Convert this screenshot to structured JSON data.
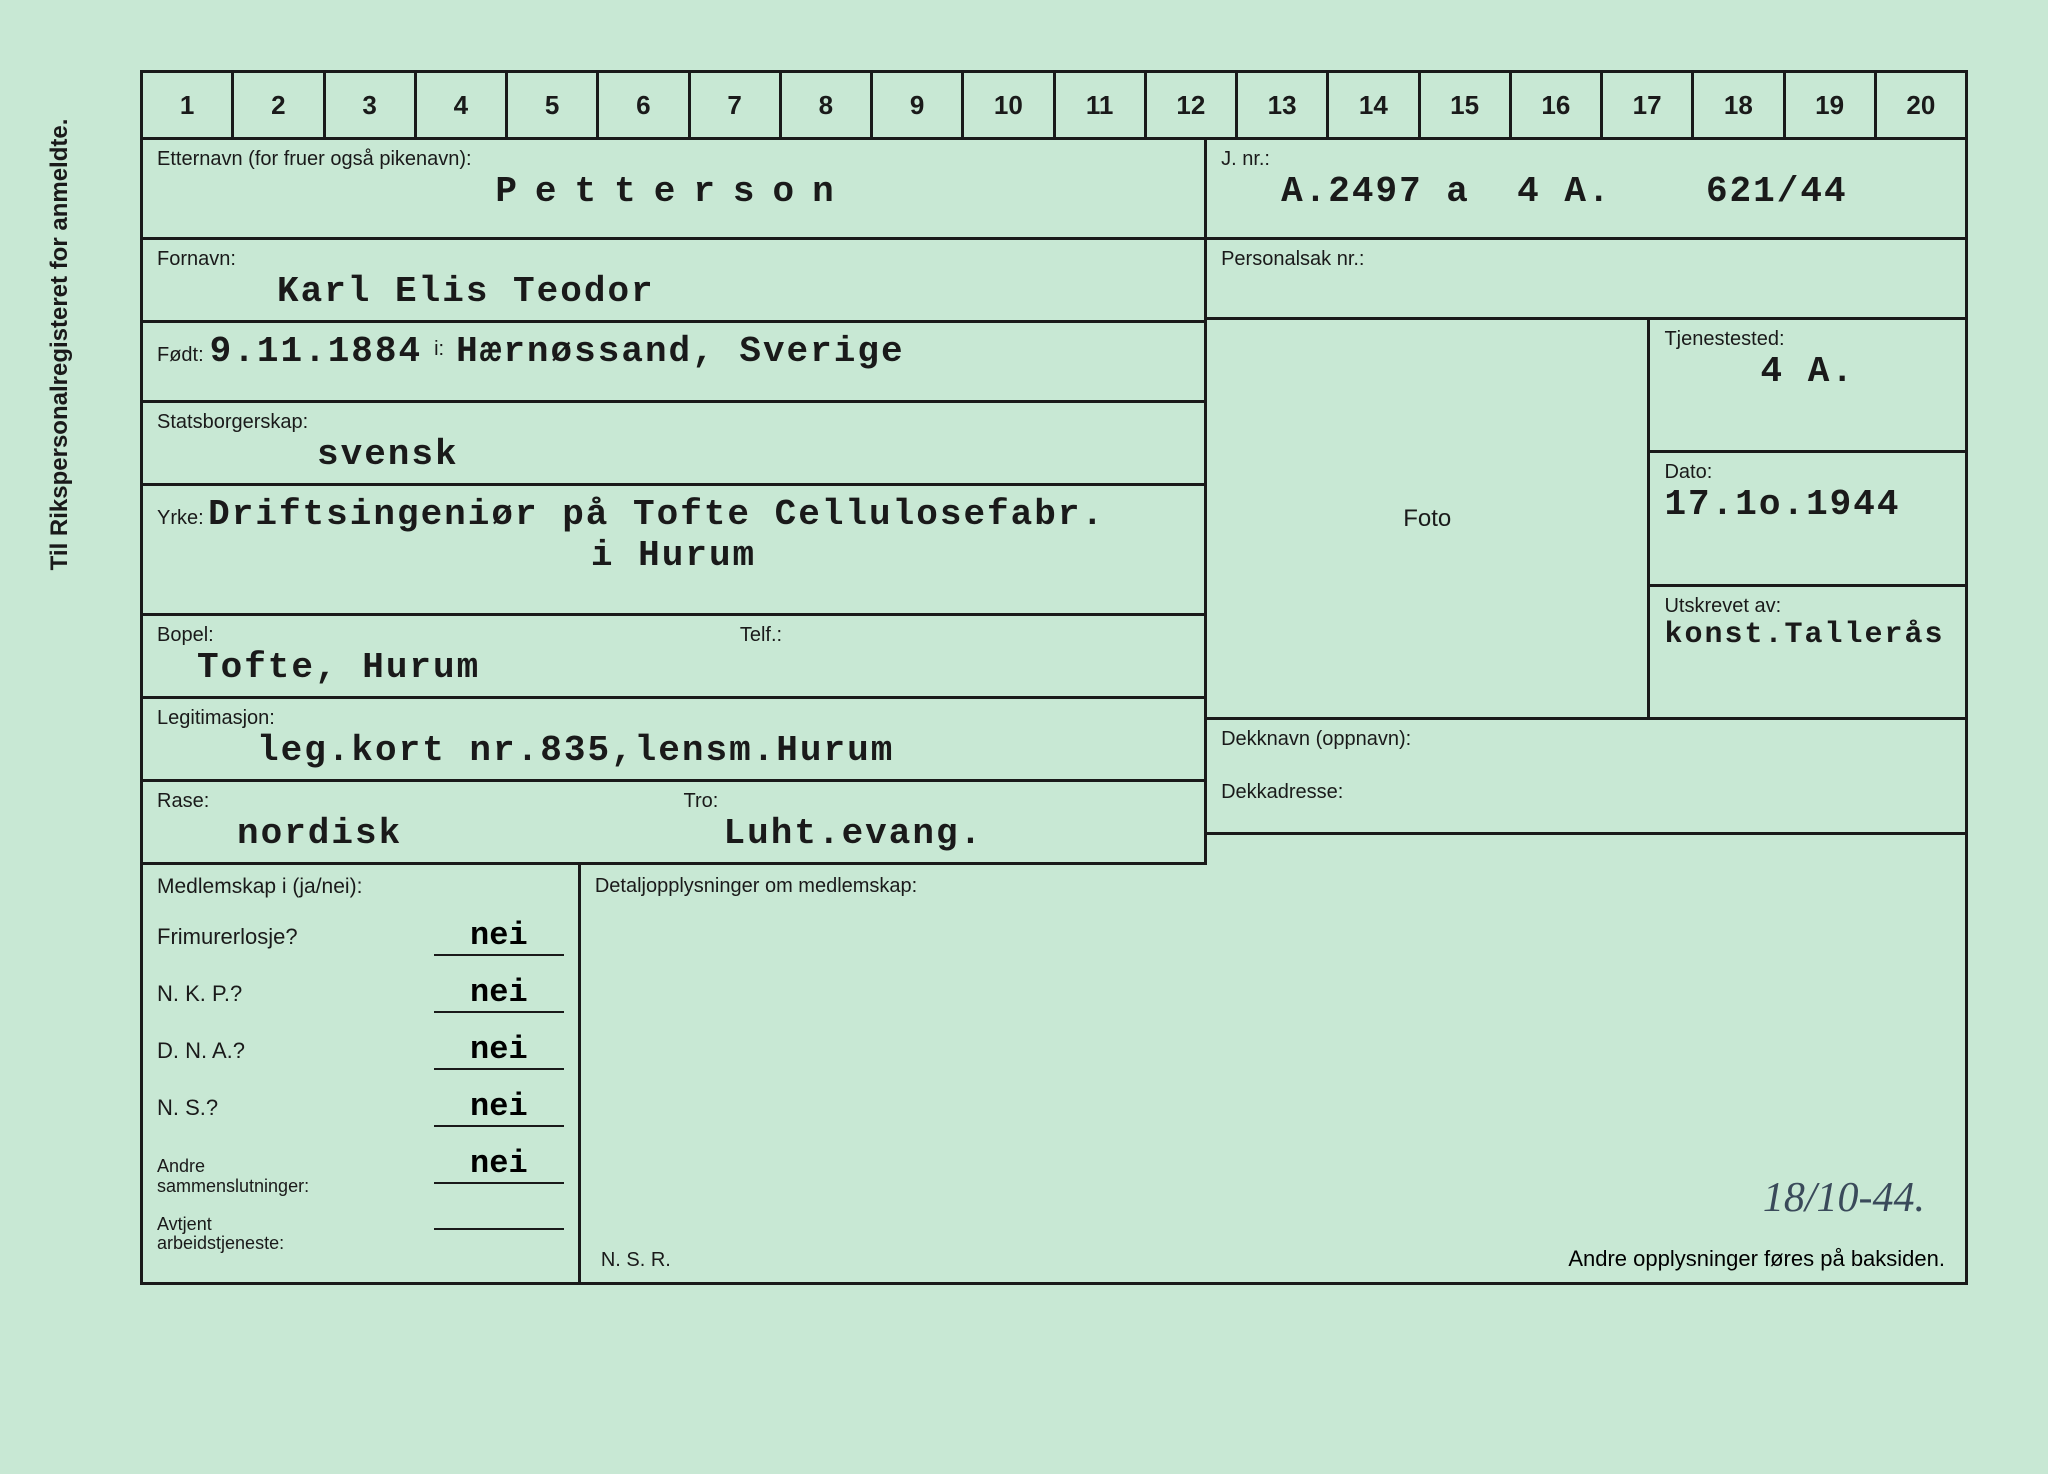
{
  "vertical_label": "Til Rikspersonalregisteret for anmeldte.",
  "ruler": [
    "1",
    "2",
    "3",
    "4",
    "5",
    "6",
    "7",
    "8",
    "9",
    "10",
    "11",
    "12",
    "13",
    "14",
    "15",
    "16",
    "17",
    "18",
    "19",
    "20"
  ],
  "surname": {
    "label": "Etternavn (for fruer også pikenavn):",
    "value": "Petterson"
  },
  "firstname": {
    "label": "Fornavn:",
    "value": "Karl Elis Teodor"
  },
  "born": {
    "label": "Født:",
    "date": "9.11.1884",
    "in_label": "i:",
    "place": "Hærnøssand, Sverige"
  },
  "citizenship": {
    "label": "Statsborgerskap:",
    "value": "svensk"
  },
  "occupation": {
    "label": "Yrke:",
    "line1": "Driftsingeniør på Tofte Cellulosefabr.",
    "line2": "i Hurum"
  },
  "residence": {
    "label": "Bopel:",
    "value": "Tofte, Hurum",
    "tel_label": "Telf.:",
    "tel_value": ""
  },
  "id": {
    "label": "Legitimasjon:",
    "value": "leg.kort nr.835,lensm.Hurum"
  },
  "race": {
    "label": "Rase:",
    "value": "nordisk"
  },
  "religion": {
    "label": "Tro:",
    "value": "Luht.evang."
  },
  "jnr": {
    "label": "J. nr.:",
    "value": "A.2497 a  4 A.    621/44"
  },
  "personalsak": {
    "label": "Personalsak nr.:",
    "value": ""
  },
  "foto_label": "Foto",
  "tjenestested": {
    "label": "Tjenestested:",
    "value": "4 A."
  },
  "dato": {
    "label": "Dato:",
    "value": "17.1o.1944"
  },
  "utskrevet": {
    "label": "Utskrevet av:",
    "value": "konst.Tallerås"
  },
  "dekknavn": {
    "label": "Dekknavn (oppnavn):",
    "value": ""
  },
  "dekkadresse": {
    "label": "Dekkadresse:",
    "value": ""
  },
  "membership_header": "Medlemskap i (ja/nei):",
  "detail_header": "Detaljopplysninger om medlemskap:",
  "memberships": {
    "frimurer": {
      "label": "Frimurerlosje?",
      "value": "nei"
    },
    "nkp": {
      "label": "N. K. P.?",
      "value": "nei"
    },
    "dna": {
      "label": "D. N. A.?",
      "value": "nei"
    },
    "ns": {
      "label": "N. S.?",
      "value": "nei"
    },
    "andre": {
      "label_line1": "Andre",
      "label_line2": "sammenslutninger:",
      "value": "nei"
    },
    "avtjent": {
      "label_line1": "Avtjent",
      "label_line2": "arbeidstjeneste:",
      "value": ""
    }
  },
  "nsr": "N. S. R.",
  "footer_note": "Andre opplysninger føres på baksiden.",
  "handwritten": "18/10-44.",
  "colors": {
    "bg": "#c8e8d4",
    "line": "#1a1a1a",
    "text": "#1a1a1a"
  }
}
